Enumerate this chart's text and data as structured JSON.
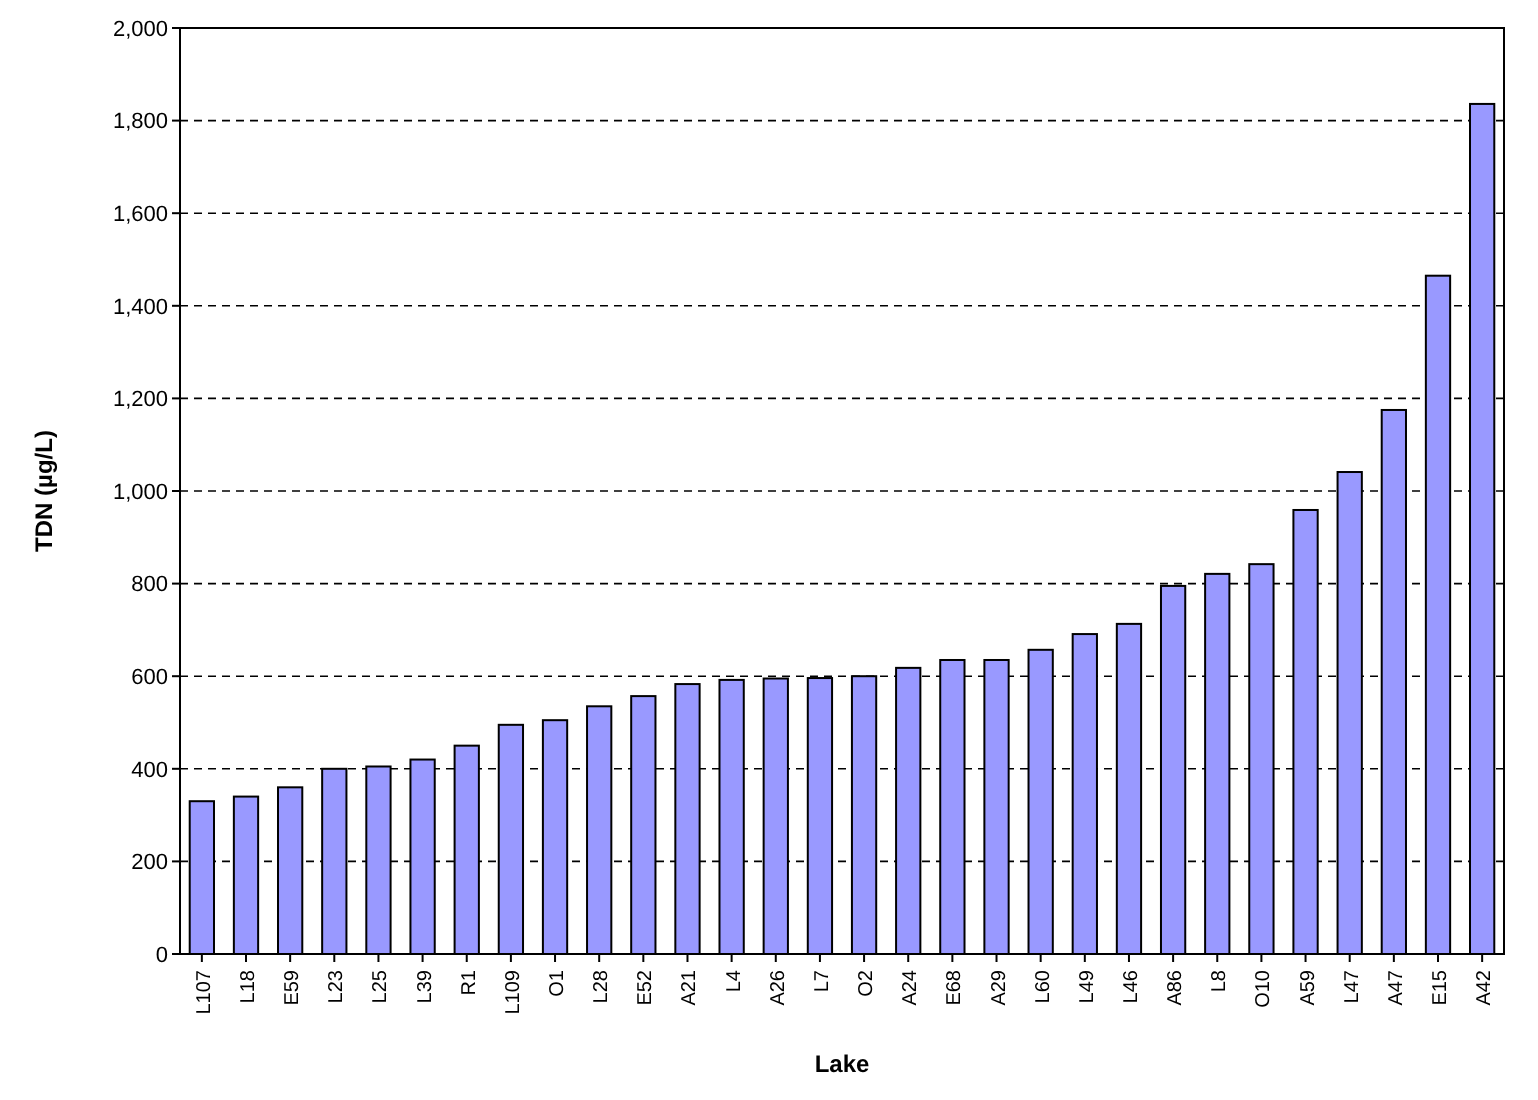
{
  "chart_data": {
    "type": "bar",
    "xlabel": "Lake",
    "ylabel": "TDN (µg/L)",
    "categories": [
      "L107",
      "L18",
      "E59",
      "L23",
      "L25",
      "L39",
      "R1",
      "L109",
      "O1",
      "L28",
      "E52",
      "A21",
      "L4",
      "A26",
      "L7",
      "O2",
      "A24",
      "E68",
      "A29",
      "L60",
      "L49",
      "L46",
      "A86",
      "L8",
      "O10",
      "A59",
      "L47",
      "A47",
      "E15",
      "A42"
    ],
    "values": [
      330,
      340,
      360,
      400,
      405,
      420,
      450,
      495,
      505,
      535,
      557,
      583,
      592,
      595,
      596,
      600,
      618,
      635,
      635,
      657,
      691,
      713,
      795,
      821,
      842,
      959,
      1041,
      1175,
      1465,
      1836
    ],
    "color": "#9999ff",
    "ylim": [
      0,
      2000
    ],
    "yticks": [
      {
        "value": 0,
        "label": "0"
      },
      {
        "value": 200,
        "label": "200"
      },
      {
        "value": 400,
        "label": "400"
      },
      {
        "value": 600,
        "label": "600"
      },
      {
        "value": 800,
        "label": "800"
      },
      {
        "value": 1000,
        "label": "1,000"
      },
      {
        "value": 1200,
        "label": "1,200"
      },
      {
        "value": 1400,
        "label": "1,400"
      },
      {
        "value": 1600,
        "label": "1,600"
      },
      {
        "value": 1800,
        "label": "1,800"
      },
      {
        "value": 2000,
        "label": "2,000"
      }
    ],
    "grid": "y"
  }
}
